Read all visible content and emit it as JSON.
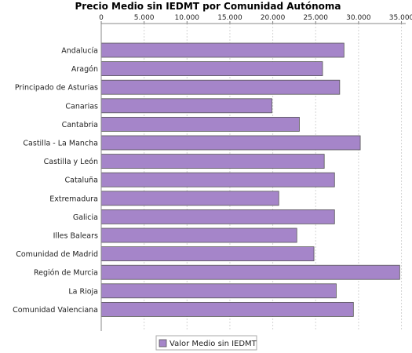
{
  "chart_data": {
    "type": "bar",
    "orientation": "horizontal",
    "title": "Precio Medio sin IEDMT por Comunidad Autónoma",
    "xlabel": "",
    "ylabel": "",
    "xlim": [
      0,
      35500
    ],
    "ticks": [
      0,
      5000,
      10000,
      15000,
      20000,
      25000,
      30000,
      35000
    ],
    "tick_labels": [
      "0",
      "5.000",
      "10.000",
      "15.000",
      "20.000",
      "25.000",
      "30.000",
      "35.000"
    ],
    "tick_position": "top",
    "grid": true,
    "legend": "bottom",
    "categories": [
      "Andalucía",
      "Aragón",
      "Principado de Asturias",
      "Canarias",
      "Cantabria",
      "Castilla - La Mancha",
      "Castilla y León",
      "Cataluña",
      "Extremadura",
      "Galicia",
      "Illes Balears",
      "Comunidad de Madrid",
      "Región de Murcia",
      "La Rioja",
      "Comunidad Valenciana"
    ],
    "series": [
      {
        "name": "Valor Medio sin IEDMT",
        "color": "#a585c9",
        "values": [
          28300,
          25800,
          27800,
          19900,
          23100,
          30200,
          26000,
          27200,
          20700,
          27200,
          22800,
          24800,
          34800,
          27400,
          29400
        ]
      }
    ]
  }
}
